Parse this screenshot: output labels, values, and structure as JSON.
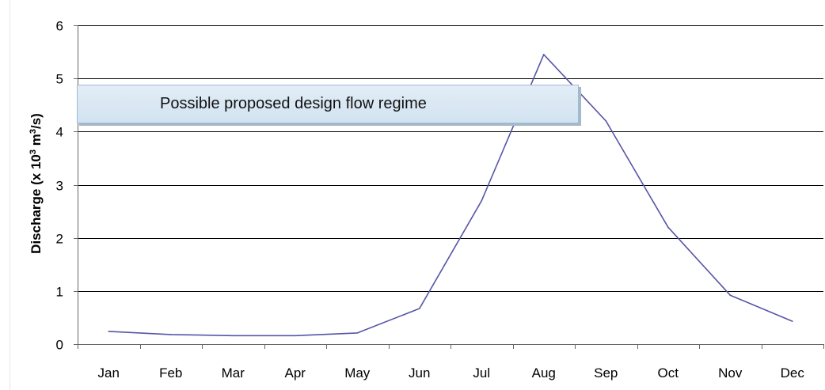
{
  "chart_data": {
    "type": "line",
    "categories": [
      "Jan",
      "Feb",
      "Mar",
      "Apr",
      "May",
      "Jun",
      "Jul",
      "Aug",
      "Sep",
      "Oct",
      "Nov",
      "Dec"
    ],
    "series": [
      {
        "values": [
          0.24,
          0.18,
          0.16,
          0.16,
          0.21,
          0.67,
          2.7,
          5.45,
          4.2,
          2.2,
          0.92,
          0.43
        ]
      }
    ],
    "ylabel": "Discharge (x 10³ m³/s)",
    "ylim": [
      0,
      6
    ],
    "yticks": [
      "0",
      "1",
      "2",
      "3",
      "4",
      "5",
      "6"
    ],
    "grid": true,
    "line_color": "#5555a8",
    "annotation": "Possible proposed design flow regime"
  }
}
